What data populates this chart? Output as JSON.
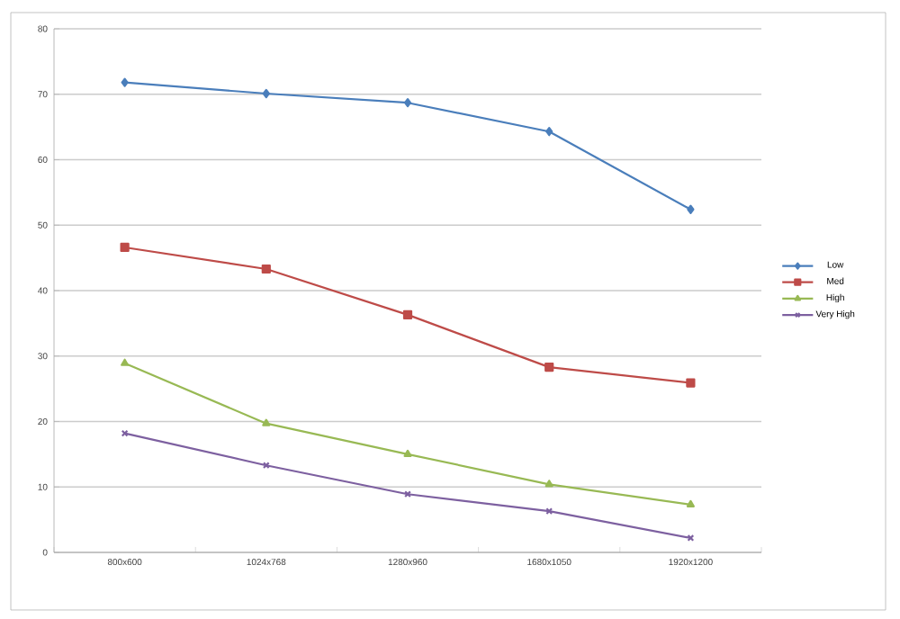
{
  "chart_data": {
    "type": "line",
    "categories": [
      "800x600",
      "1024x768",
      "1280x960",
      "1680x1050",
      "1920x1200"
    ],
    "series": [
      {
        "name": "Low",
        "color": "#4a7ebb",
        "marker": "diamond",
        "values": [
          71.8,
          70.1,
          68.7,
          64.3,
          52.4
        ]
      },
      {
        "name": "Med",
        "color": "#be4b48",
        "marker": "square",
        "values": [
          46.6,
          43.3,
          36.3,
          28.3,
          25.9
        ]
      },
      {
        "name": "High",
        "color": "#98b954",
        "marker": "triangle",
        "values": [
          28.9,
          19.7,
          15.0,
          10.4,
          7.3
        ]
      },
      {
        "name": "Very High",
        "color": "#7d60a0",
        "marker": "cross",
        "values": [
          18.2,
          13.3,
          8.9,
          6.3,
          2.2
        ]
      }
    ],
    "ylim": [
      0,
      80
    ],
    "yticks": [
      0,
      10,
      20,
      30,
      40,
      50,
      60,
      70,
      80
    ],
    "grid": "y",
    "legend": "right",
    "line_style": "solid"
  }
}
